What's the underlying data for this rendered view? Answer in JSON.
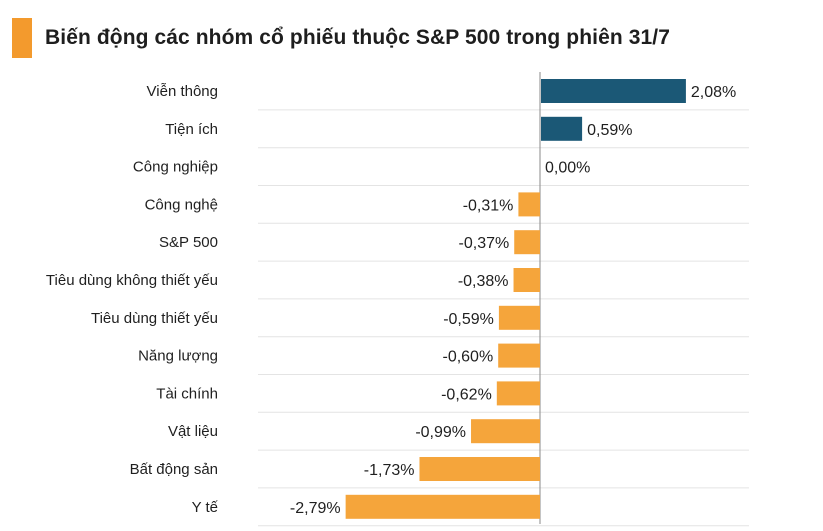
{
  "title": "Biến động các nhóm cổ phiếu thuộc S&P 500 trong phiên 31/7",
  "colors": {
    "accent": "#f39a2d",
    "positive": "#1b5876",
    "negative": "#f5a53b",
    "grid": "#e4e4e4",
    "axis": "#8a8a8a"
  },
  "chart_data": {
    "type": "bar",
    "orientation": "horizontal",
    "title": "Biến động các nhóm cổ phiếu thuộc S&P 500 trong phiên 31/7",
    "categories": [
      "Viễn thông",
      "Tiện ích",
      "Công nghiệp",
      "Công nghệ",
      "S&P 500",
      "Tiêu dùng không thiết yếu",
      "Tiêu dùng thiết yếu",
      "Năng lượng",
      "Tài chính",
      "Vật liệu",
      "Bất động sản",
      "Y tế"
    ],
    "values": [
      2.08,
      0.59,
      0.0,
      -0.31,
      -0.37,
      -0.38,
      -0.59,
      -0.6,
      -0.62,
      -0.99,
      -1.73,
      -2.79
    ],
    "value_labels": [
      "2,08%",
      "0,59%",
      "0,00%",
      "-0,31%",
      "-0,37%",
      "-0,38%",
      "-0,59%",
      "-0,60%",
      "-0,62%",
      "-0,99%",
      "-1,73%",
      "-2,79%"
    ],
    "xlim": [
      -3.0,
      3.0
    ],
    "grid": true,
    "legend": "none"
  }
}
